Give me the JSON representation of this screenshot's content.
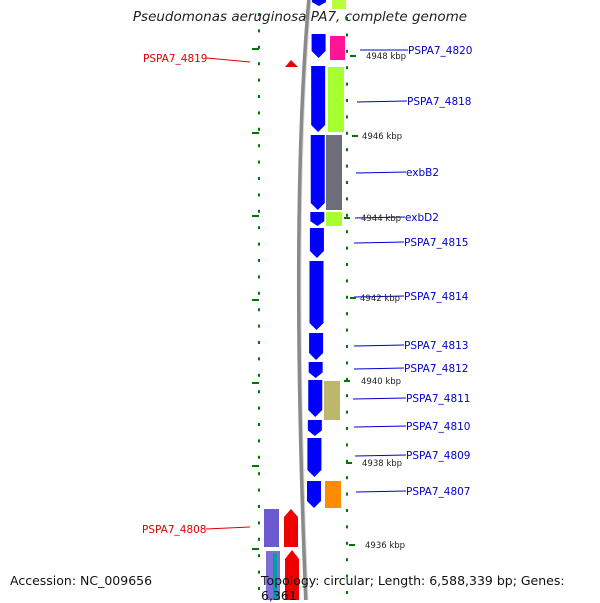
{
  "title": "Pseudomonas aeruginosa PA7, complete genome",
  "accession": "Accession: NC_009656",
  "summary": "Topology: circular; Length: 6,588,339 bp; Genes: 6,361",
  "colors": {
    "strand_plus": "#0000ff",
    "kbp_marker": "#007700",
    "label_blue": "#0000cc",
    "label_red": "#dd0000",
    "backbone": "#888888"
  },
  "kbp_labels": [
    "4948 kbp",
    "4946 kbp",
    "4944 kbp",
    "4942 kbp",
    "4940 kbp",
    "4938 kbp",
    "4936 kbp"
  ],
  "genes_right": [
    "PSPA7_4820",
    "PSPA7_4818",
    "exbB2",
    "exbD2",
    "PSPA7_4815",
    "PSPA7_4814",
    "PSPA7_4813",
    "PSPA7_4812",
    "PSPA7_4811",
    "PSPA7_4810",
    "PSPA7_4809",
    "PSPA7_4807"
  ],
  "genes_left": [
    "PSPA7_4819",
    "PSPA7_4808"
  ]
}
